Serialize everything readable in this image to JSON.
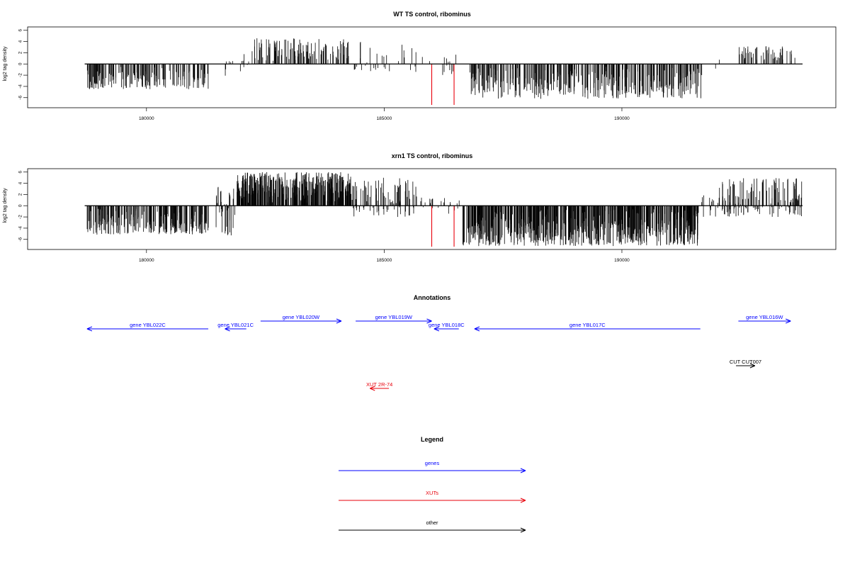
{
  "chart_data": [
    {
      "type": "bar",
      "title": "WT TS control, ribominus",
      "xlabel": "",
      "ylabel": "log2 tag density",
      "xlim": [
        177500,
        194500
      ],
      "ylim": [
        -7.8,
        6.6
      ],
      "x_ticks": [
        180000,
        185000,
        190000
      ],
      "y_ticks": [
        -6,
        -4,
        -2,
        0,
        2,
        4,
        6
      ],
      "baseline": {
        "start": 178700,
        "end": 193800
      },
      "highlight_color": "#e8000b",
      "highlight_bars": [
        {
          "x": 186000,
          "y": -7.3
        },
        {
          "x": 186470,
          "y": -7.3
        }
      ],
      "segments": [
        {
          "start": 178750,
          "end": 181300,
          "min": -4.5,
          "max": -0.5,
          "density": 1.0
        },
        {
          "start": 181650,
          "end": 182200,
          "min": -3.0,
          "max": 2.0,
          "density": 0.35
        },
        {
          "start": 182200,
          "end": 184300,
          "min": 0.5,
          "max": 4.6,
          "density": 0.8
        },
        {
          "start": 184300,
          "end": 185700,
          "min": -1.5,
          "max": 4.0,
          "density": 0.35
        },
        {
          "start": 185700,
          "end": 186550,
          "min": -2.0,
          "max": 2.0,
          "density": 0.25
        },
        {
          "start": 186800,
          "end": 191700,
          "min": -6.2,
          "max": -0.5,
          "density": 1.1
        },
        {
          "start": 191900,
          "end": 192050,
          "min": -1.0,
          "max": 1.0,
          "density": 0.2
        },
        {
          "start": 192450,
          "end": 193650,
          "min": 0.5,
          "max": 3.2,
          "density": 0.7
        }
      ]
    },
    {
      "type": "bar",
      "title": "xrn1 TS control, ribominus",
      "xlabel": "",
      "ylabel": "log2 tag density",
      "xlim": [
        177500,
        194500
      ],
      "ylim": [
        -7.8,
        6.6
      ],
      "x_ticks": [
        180000,
        185000,
        190000
      ],
      "y_ticks": [
        -6,
        -4,
        -2,
        0,
        2,
        4,
        6
      ],
      "baseline": {
        "start": 178700,
        "end": 193800
      },
      "highlight_color": "#e8000b",
      "highlight_bars": [
        {
          "x": 186000,
          "y": -7.3
        },
        {
          "x": 186470,
          "y": -7.3
        }
      ],
      "segments": [
        {
          "start": 178750,
          "end": 181300,
          "min": -5.2,
          "max": -0.5,
          "density": 1.4
        },
        {
          "start": 181450,
          "end": 181900,
          "min": -5.5,
          "max": 3.5,
          "density": 1.2
        },
        {
          "start": 181900,
          "end": 184300,
          "min": 0.5,
          "max": 6.0,
          "density": 2.2
        },
        {
          "start": 184300,
          "end": 185700,
          "min": -2.0,
          "max": 5.0,
          "density": 1.1
        },
        {
          "start": 185700,
          "end": 186600,
          "min": -1.5,
          "max": 1.5,
          "density": 0.4
        },
        {
          "start": 186650,
          "end": 191600,
          "min": -7.2,
          "max": -0.5,
          "density": 2.0
        },
        {
          "start": 191600,
          "end": 192000,
          "min": -2.0,
          "max": 2.0,
          "density": 0.5
        },
        {
          "start": 192000,
          "end": 193800,
          "min": -2.0,
          "max": 5.0,
          "density": 1.3
        }
      ]
    }
  ],
  "annotations": {
    "title": "Annotations",
    "items": [
      {
        "label": "gene YBL022C",
        "start": 178750,
        "end": 181300,
        "strand": "-",
        "row": 1,
        "color": "#0000ff"
      },
      {
        "label": "gene YBL021C",
        "start": 181650,
        "end": 182100,
        "strand": "-",
        "row": 1,
        "color": "#0000ff"
      },
      {
        "label": "gene YBL020W",
        "start": 182400,
        "end": 184100,
        "strand": "+",
        "row": 0,
        "color": "#0000ff"
      },
      {
        "label": "gene YBL019W",
        "start": 184400,
        "end": 186000,
        "strand": "+",
        "row": 0,
        "color": "#0000ff"
      },
      {
        "label": "gene YBL018C",
        "start": 186050,
        "end": 186570,
        "strand": "-",
        "row": 1,
        "color": "#0000ff"
      },
      {
        "label": "gene YBL017C",
        "start": 186900,
        "end": 191650,
        "strand": "-",
        "row": 1,
        "color": "#0000ff"
      },
      {
        "label": "gene YBL016W",
        "start": 192450,
        "end": 193550,
        "strand": "+",
        "row": 0,
        "color": "#0000ff"
      },
      {
        "label": "CUT CUT007",
        "start": 192400,
        "end": 192800,
        "strand": "+",
        "row": 2,
        "color": "#000000"
      },
      {
        "label": "XUT 2R-74",
        "start": 184700,
        "end": 185100,
        "strand": "-",
        "row": 3,
        "color": "#e8000b"
      }
    ]
  },
  "legend": {
    "title": "Legend",
    "items": [
      {
        "label": "genes",
        "color": "#0000ff"
      },
      {
        "label": "XUTs",
        "color": "#e8000b"
      },
      {
        "label": "other",
        "color": "#000000"
      }
    ]
  }
}
